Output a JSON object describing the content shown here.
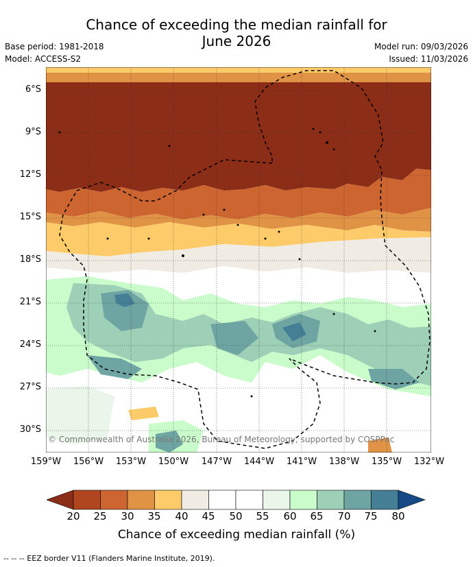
{
  "title_line1": "Chance of exceeding the median rainfall for",
  "title_line2": "June 2026",
  "base_period": "Base period: 1981-2018",
  "model": "Model: ACCESS-S2",
  "model_run": "Model run: 09/03/2026",
  "issued": "Issued: 11/03/2026",
  "copyright": "© Commonwealth of Australia 2026, Bureau of Meteorology, supported by COSPPac",
  "lat_ticks": [
    "6°S",
    "9°S",
    "12°S",
    "15°S",
    "18°S",
    "21°S",
    "24°S",
    "27°S",
    "30°S"
  ],
  "lon_ticks": [
    "159°W",
    "156°W",
    "153°W",
    "150°W",
    "147°W",
    "144°W",
    "141°W",
    "138°W",
    "135°W",
    "132°W"
  ],
  "colorbar": {
    "label": "Chance of exceeding median rainfall (%)",
    "ticks": [
      "20",
      "25",
      "30",
      "35",
      "40",
      "45",
      "50",
      "55",
      "60",
      "65",
      "70",
      "75",
      "80"
    ],
    "colors": [
      "#8c2d17",
      "#b0461f",
      "#cd6531",
      "#e09345",
      "#fdcb6a",
      "#f0ece4",
      "#ffffff",
      "#ffffff",
      "#e9f6e9",
      "#c9fcca",
      "#9dd0b7",
      "#6ea5a2",
      "#457f96",
      "#164a86"
    ]
  },
  "footer": "--  --  -- EEZ border V11 (Flanders Marine Institute, 2019)."
}
